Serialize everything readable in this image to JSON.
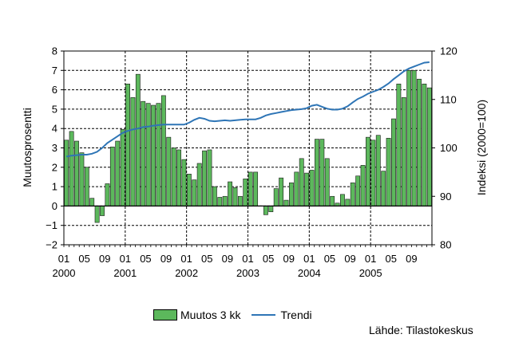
{
  "chart_data": {
    "type": "bar+line",
    "ylabel": "Muutosprosentti",
    "ylabel_right": "Indeksi (2000=100)",
    "ylim": [
      -2,
      8
    ],
    "ylim_right": [
      80,
      120
    ],
    "yticks": [
      -2,
      -1,
      0,
      1,
      2,
      3,
      4,
      5,
      6,
      7,
      8
    ],
    "yticks_right": [
      80,
      90,
      100,
      110,
      120
    ],
    "x_month_labels": [
      "01",
      "05",
      "09"
    ],
    "x_year_labels": [
      "2000",
      "2001",
      "2002",
      "2003",
      "2004",
      "2005"
    ],
    "source": "Lähde: Tilastokeskus",
    "grid": true,
    "legend_position": "bottom",
    "series": [
      {
        "name": "Muutos 3 kk",
        "kind": "bar",
        "color": "#5cb85c",
        "values": [
          3.4,
          3.85,
          3.35,
          2.75,
          2.0,
          0.4,
          -0.85,
          -0.5,
          1.15,
          3.05,
          3.35,
          3.95,
          6.3,
          5.6,
          6.8,
          5.4,
          5.3,
          5.2,
          5.3,
          5.7,
          3.55,
          3.0,
          2.9,
          2.4,
          1.65,
          1.35,
          2.2,
          2.85,
          2.9,
          1.0,
          0.45,
          0.5,
          1.25,
          0.95,
          0.5,
          1.4,
          1.75,
          1.75,
          0.0,
          -0.45,
          -0.3,
          0.9,
          1.45,
          0.3,
          1.2,
          1.75,
          2.45,
          1.7,
          1.85,
          3.45,
          3.45,
          2.45,
          0.5,
          0.15,
          0.6,
          0.35,
          1.2,
          1.55,
          2.1,
          3.55,
          3.4,
          3.65,
          1.8,
          3.5,
          4.5,
          6.3,
          5.6,
          7.0,
          7.0,
          6.55,
          6.3,
          6.1
        ]
      },
      {
        "name": "Trendi",
        "kind": "line",
        "color": "#2e75b6",
        "axis": "right",
        "values": [
          98.2,
          98.4,
          98.5,
          98.6,
          98.6,
          98.8,
          99.2,
          100.0,
          101.0,
          101.7,
          102.4,
          103.1,
          103.5,
          103.8,
          104.0,
          104.3,
          104.4,
          104.6,
          104.7,
          104.8,
          104.8,
          104.8,
          104.8,
          104.8,
          105.2,
          105.8,
          106.2,
          106.0,
          105.6,
          105.5,
          105.6,
          105.7,
          105.6,
          105.7,
          105.8,
          105.9,
          105.9,
          105.9,
          106.2,
          106.7,
          107.0,
          107.2,
          107.4,
          107.6,
          107.8,
          107.9,
          108.0,
          108.2,
          108.7,
          108.9,
          108.5,
          108.1,
          107.9,
          107.9,
          108.1,
          108.6,
          109.4,
          110.1,
          110.6,
          111.2,
          111.6,
          112.0,
          112.6,
          113.3,
          114.2,
          115.0,
          115.8,
          116.4,
          116.8,
          117.2,
          117.6,
          117.7
        ]
      }
    ]
  }
}
